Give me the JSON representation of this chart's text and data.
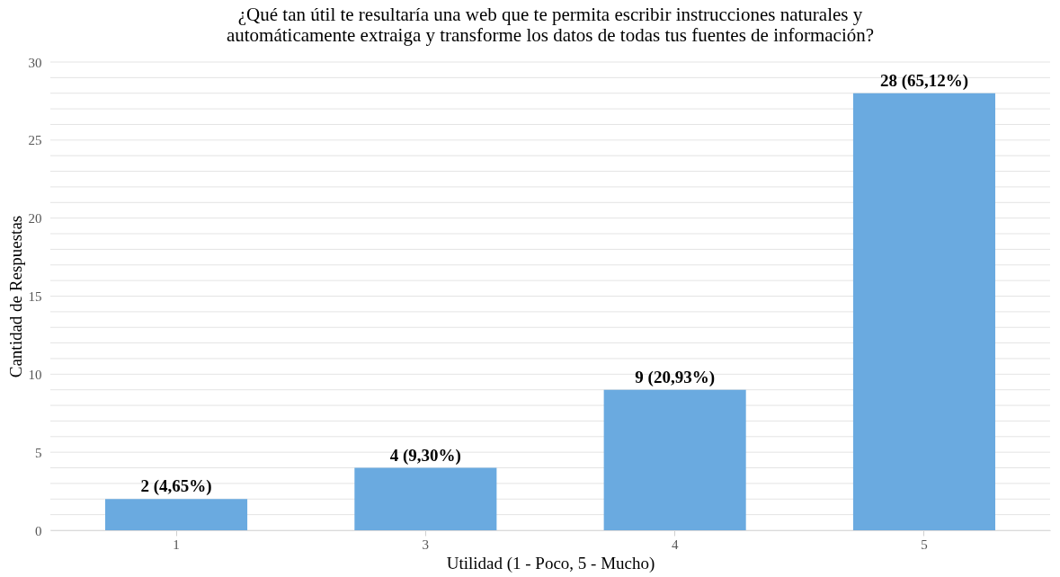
{
  "chart_data": {
    "type": "bar",
    "title": [
      "¿Qué tan útil te resultaría una web que te permita escribir instrucciones naturales y",
      "automáticamente extraiga y transforme los datos de todas tus fuentes de información?"
    ],
    "xlabel": "Utilidad (1 - Poco, 5 - Mucho)",
    "ylabel": "Cantidad de Respuestas",
    "categories": [
      "1",
      "3",
      "4",
      "5"
    ],
    "values": [
      2,
      4,
      9,
      28
    ],
    "color": "#6aaae0",
    "value_labels": [
      "2 (4,65%)",
      "4 (9,30%)",
      "9 (20,93%)",
      "28 (65,12%)"
    ],
    "ylim": [
      0,
      30
    ],
    "yticks": [
      0,
      {
        "value": 1,
        "label": null
      },
      {
        "value": 2,
        "label": null
      },
      {
        "value": 3,
        "label": null
      },
      {
        "value": 4,
        "label": null
      },
      5,
      {
        "value": 6,
        "label": null
      },
      {
        "value": 7,
        "label": null
      },
      {
        "value": 8,
        "label": null
      },
      {
        "value": 9,
        "label": null
      },
      10,
      {
        "value": 11,
        "label": null
      },
      {
        "value": 12,
        "label": null
      },
      {
        "value": 13,
        "label": null
      },
      {
        "value": 14,
        "label": null
      },
      15,
      {
        "value": 16,
        "label": null
      },
      {
        "value": 17,
        "label": null
      },
      {
        "value": 18,
        "label": null
      },
      {
        "value": 19,
        "label": null
      },
      20,
      {
        "value": 21,
        "label": null
      },
      {
        "value": 22,
        "label": null
      },
      {
        "value": 23,
        "label": null
      },
      {
        "value": 24,
        "label": null
      },
      25,
      {
        "value": 26,
        "label": null
      },
      {
        "value": 27,
        "label": null
      },
      {
        "value": 28,
        "label": null
      },
      {
        "value": 29,
        "label": null
      },
      30
    ],
    "grid": "y"
  }
}
